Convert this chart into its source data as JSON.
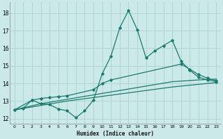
{
  "xlabel": "Humidex (Indice chaleur)",
  "bg_color": "#cce9e9",
  "grid_color": "#aed4d4",
  "line_color": "#1a7a6e",
  "xlim": [
    -0.5,
    23.5
  ],
  "ylim": [
    11.7,
    18.6
  ],
  "yticks": [
    12,
    13,
    14,
    15,
    16,
    17,
    18
  ],
  "xticks": [
    0,
    1,
    2,
    3,
    4,
    5,
    6,
    7,
    8,
    9,
    10,
    11,
    12,
    13,
    14,
    15,
    16,
    17,
    18,
    19,
    20,
    21,
    22,
    23
  ],
  "series1_x": [
    0,
    1,
    2,
    3,
    4,
    5,
    6,
    7,
    8,
    9,
    10,
    11,
    12,
    13,
    14,
    15,
    16,
    17,
    18,
    19,
    20,
    21,
    22,
    23
  ],
  "series1_y": [
    12.5,
    12.6,
    13.05,
    12.85,
    12.8,
    12.55,
    12.45,
    12.05,
    12.45,
    13.05,
    14.55,
    15.55,
    17.15,
    18.15,
    17.05,
    15.45,
    15.85,
    16.15,
    16.45,
    15.25,
    14.75,
    14.35,
    14.2,
    14.1
  ],
  "series2_x": [
    0,
    2,
    3,
    4,
    5,
    6,
    9,
    10,
    11,
    19,
    20,
    21,
    22,
    23
  ],
  "series2_y": [
    12.5,
    13.05,
    13.15,
    13.2,
    13.25,
    13.3,
    13.65,
    14.0,
    14.2,
    15.1,
    14.8,
    14.5,
    14.3,
    14.15
  ],
  "series3_x": [
    0,
    3,
    6,
    9,
    12,
    15,
    18,
    21,
    23
  ],
  "series3_y": [
    12.5,
    12.85,
    13.1,
    13.35,
    13.6,
    13.85,
    14.1,
    14.2,
    14.25
  ],
  "series4_x": [
    0,
    3,
    6,
    9,
    12,
    15,
    18,
    21,
    23
  ],
  "series4_y": [
    12.5,
    12.75,
    13.0,
    13.2,
    13.4,
    13.6,
    13.8,
    13.95,
    14.05
  ]
}
